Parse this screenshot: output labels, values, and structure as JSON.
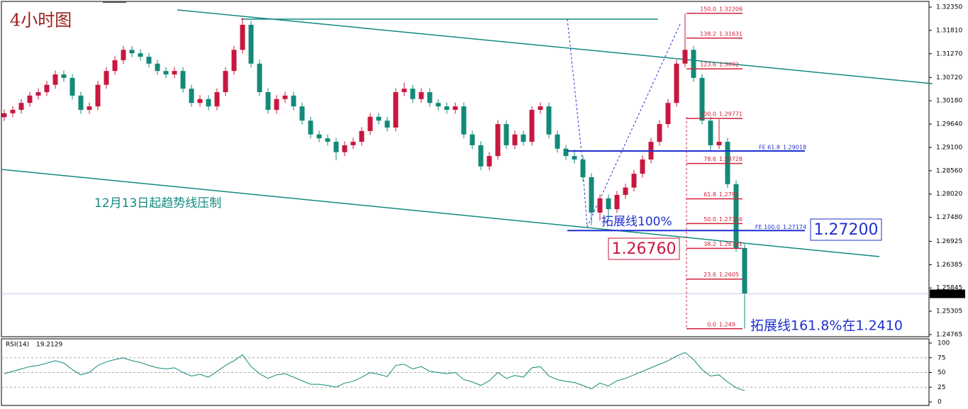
{
  "chart_data": {
    "type": "candlestick",
    "title": "4小时图",
    "annotations": {
      "trend_note": "12月13日起趋势线压制",
      "ext100": "拓展线100%",
      "box_red": "1.26760",
      "box_blue": "1.27200",
      "ext1618": "拓展线161.8%在1.2410"
    },
    "up_color": "#c8173f",
    "down_color": "#138a78",
    "ylim": [
      1.24716,
      1.32514
    ],
    "yticks": [
      {
        "value": 1.3235,
        "label": "1.32350"
      },
      {
        "value": 1.3181,
        "label": "1.31810"
      },
      {
        "value": 1.3127,
        "label": "1.31270"
      },
      {
        "value": 1.3072,
        "label": "1.30720"
      },
      {
        "value": 1.3018,
        "label": "1.30180"
      },
      {
        "value": 1.2964,
        "label": "1.29640"
      },
      {
        "value": 1.291,
        "label": "1.29100"
      },
      {
        "value": 1.2856,
        "label": "1.28560"
      },
      {
        "value": 1.2802,
        "label": "1.28020"
      },
      {
        "value": 1.2748,
        "label": "1.27480"
      },
      1.26925,
      1.26385,
      1.25845,
      1.25305,
      1.24765
    ],
    "current_price": 1.25709,
    "candles": [
      [
        1.298,
        1.2998,
        1.2971,
        1.2989
      ],
      [
        1.2989,
        1.3006,
        1.298,
        1.2997
      ],
      [
        1.2997,
        1.3022,
        1.2988,
        1.3013
      ],
      [
        1.3013,
        1.3039,
        1.3004,
        1.303
      ],
      [
        1.303,
        1.3047,
        1.3021,
        1.3038
      ],
      [
        1.3038,
        1.3064,
        1.3029,
        1.3055
      ],
      [
        1.3055,
        1.3088,
        1.3046,
        1.3079
      ],
      [
        1.3079,
        1.3088,
        1.3062,
        1.3071
      ],
      [
        1.3071,
        1.308,
        1.3021,
        1.303
      ],
      [
        1.303,
        1.3039,
        1.2988,
        1.2997
      ],
      [
        1.2997,
        1.3014,
        1.2988,
        1.3005
      ],
      [
        1.3005,
        1.3064,
        1.2996,
        1.3055
      ],
      [
        1.3055,
        1.3096,
        1.3046,
        1.3087
      ],
      [
        1.3087,
        1.3121,
        1.3078,
        1.3112
      ],
      [
        1.3112,
        1.3145,
        1.3103,
        1.3136
      ],
      [
        1.3136,
        1.3145,
        1.3119,
        1.3128
      ],
      [
        1.3128,
        1.3137,
        1.3111,
        1.312
      ],
      [
        1.312,
        1.3129,
        1.3095,
        1.3104
      ],
      [
        1.3104,
        1.3113,
        1.3078,
        1.3087
      ],
      [
        1.3087,
        1.3096,
        1.307,
        1.3079
      ],
      [
        1.3079,
        1.3096,
        1.307,
        1.3087
      ],
      [
        1.3087,
        1.3096,
        1.3037,
        1.3046
      ],
      [
        1.3046,
        1.3055,
        1.3004,
        1.3013
      ],
      [
        1.3013,
        1.3031,
        1.3004,
        1.3022
      ],
      [
        1.3022,
        1.3031,
        1.2996,
        1.3005
      ],
      [
        1.3005,
        1.3047,
        1.2996,
        1.3038
      ],
      [
        1.3038,
        1.3096,
        1.3029,
        1.3087
      ],
      [
        1.3087,
        1.3145,
        1.3078,
        1.3136
      ],
      [
        1.3136,
        1.321,
        1.3127,
        1.3194
      ],
      [
        1.3194,
        1.3203,
        1.3095,
        1.3104
      ],
      [
        1.3104,
        1.3113,
        1.3029,
        1.3038
      ],
      [
        1.3038,
        1.3047,
        1.2988,
        1.2997
      ],
      [
        1.2997,
        1.3031,
        1.2988,
        1.3022
      ],
      [
        1.3022,
        1.3039,
        1.3013,
        1.303
      ],
      [
        1.303,
        1.3039,
        1.2996,
        1.3005
      ],
      [
        1.3005,
        1.3014,
        1.2963,
        1.2972
      ],
      [
        1.2972,
        1.2981,
        1.2931,
        1.294
      ],
      [
        1.294,
        1.2949,
        1.2922,
        1.2931
      ],
      [
        1.2931,
        1.294,
        1.2914,
        1.2923
      ],
      [
        1.2923,
        1.2932,
        1.288,
        1.2899
      ],
      [
        1.2899,
        1.2924,
        1.289,
        1.2915
      ],
      [
        1.2915,
        1.2932,
        1.2906,
        1.2923
      ],
      [
        1.2923,
        1.2957,
        1.2914,
        1.2948
      ],
      [
        1.2948,
        1.299,
        1.2939,
        1.2981
      ],
      [
        1.2981,
        1.299,
        1.2963,
        1.2972
      ],
      [
        1.2972,
        1.2981,
        1.2947,
        1.2956
      ],
      [
        1.2956,
        1.3047,
        1.2947,
        1.3038
      ],
      [
        1.3038,
        1.306,
        1.3029,
        1.3046
      ],
      [
        1.3046,
        1.3055,
        1.3013,
        1.3022
      ],
      [
        1.3022,
        1.3047,
        1.3013,
        1.3038
      ],
      [
        1.3038,
        1.3047,
        1.3004,
        1.3013
      ],
      [
        1.3013,
        1.3022,
        1.2996,
        1.3005
      ],
      [
        1.3005,
        1.3014,
        1.2988,
        1.2997
      ],
      [
        1.2997,
        1.3014,
        1.2988,
        1.3005
      ],
      [
        1.3005,
        1.3014,
        1.2931,
        1.294
      ],
      [
        1.294,
        1.2949,
        1.2906,
        1.2915
      ],
      [
        1.2915,
        1.2924,
        1.2857,
        1.2866
      ],
      [
        1.2866,
        1.2899,
        1.2857,
        1.289
      ],
      [
        1.289,
        1.2973,
        1.2881,
        1.2964
      ],
      [
        1.2964,
        1.2973,
        1.2906,
        1.2915
      ],
      [
        1.2915,
        1.2949,
        1.2906,
        1.294
      ],
      [
        1.294,
        1.2949,
        1.2914,
        1.2923
      ],
      [
        1.2923,
        1.3006,
        1.2914,
        1.2997
      ],
      [
        1.2997,
        1.3014,
        1.2988,
        1.3005
      ],
      [
        1.3005,
        1.3014,
        1.2931,
        1.294
      ],
      [
        1.294,
        1.2949,
        1.2898,
        1.2907
      ],
      [
        1.2907,
        1.2916,
        1.2881,
        1.289
      ],
      [
        1.289,
        1.2905,
        1.2873,
        1.2882
      ],
      [
        1.2882,
        1.2891,
        1.2832,
        1.2841
      ],
      [
        1.2841,
        1.285,
        1.273,
        1.2759
      ],
      [
        1.2759,
        1.2801,
        1.274,
        1.2792
      ],
      [
        1.2792,
        1.2801,
        1.2745,
        1.2767
      ],
      [
        1.2767,
        1.2809,
        1.2758,
        1.28
      ],
      [
        1.28,
        1.2826,
        1.2791,
        1.2817
      ],
      [
        1.2817,
        1.2858,
        1.2808,
        1.2849
      ],
      [
        1.2849,
        1.2891,
        1.284,
        1.2882
      ],
      [
        1.2882,
        1.2932,
        1.2873,
        1.2923
      ],
      [
        1.2923,
        1.2973,
        1.2914,
        1.2964
      ],
      [
        1.2964,
        1.3022,
        1.2955,
        1.3013
      ],
      [
        1.3013,
        1.3113,
        1.3004,
        1.3104
      ],
      [
        1.3104,
        1.322,
        1.3095,
        1.3136
      ],
      [
        1.3136,
        1.3145,
        1.3062,
        1.3071
      ],
      [
        1.3071,
        1.308,
        1.2963,
        1.2972
      ],
      [
        1.2972,
        1.2981,
        1.29,
        1.2915
      ],
      [
        1.2915,
        1.2975,
        1.2906,
        1.2923
      ],
      [
        1.2923,
        1.2932,
        1.2816,
        1.2825
      ],
      [
        1.2825,
        1.2834,
        1.2668,
        1.2677
      ],
      [
        1.2677,
        1.2686,
        1.249,
        1.2571
      ]
    ],
    "fib": {
      "color": "#d0203a",
      "levels": [
        {
          "ratio": "150.0",
          "price": 1.32206
        },
        {
          "ratio": "138.2",
          "price": 1.31631
        },
        {
          "ratio": "123.6",
          "price": 1.3092
        },
        {
          "ratio": "100.0",
          "price": 1.29771
        },
        {
          "ratio": "78.6",
          "price": 1.28728
        },
        {
          "ratio": "61.8",
          "price": 1.2791
        },
        {
          "ratio": "50.0",
          "price": 1.27336
        },
        {
          "ratio": "38.2",
          "price": 1.26761
        },
        {
          "ratio": "23.6",
          "price": 1.2605
        },
        {
          "ratio": "0.0",
          "price": 1.249
        }
      ]
    },
    "fe": {
      "color": "#1f2fd0",
      "levels": [
        {
          "label": "FE 61.8",
          "price": 1.29018
        },
        {
          "label": "FE 100.0",
          "price": 1.27174
        }
      ]
    },
    "rsi": {
      "label": "RSI(14)",
      "color": "#138a78",
      "ylim": [
        0,
        100
      ],
      "yticks": [
        100,
        75,
        50,
        25,
        0
      ],
      "values": [
        48,
        52,
        56,
        60,
        62,
        66,
        70,
        66,
        55,
        46,
        50,
        62,
        68,
        72,
        75,
        70,
        67,
        62,
        58,
        56,
        58,
        50,
        44,
        47,
        42,
        52,
        62,
        70,
        80,
        60,
        48,
        40,
        46,
        48,
        42,
        36,
        30,
        30,
        28,
        25,
        32,
        35,
        42,
        50,
        47,
        43,
        62,
        64,
        56,
        60,
        52,
        50,
        48,
        50,
        38,
        34,
        28,
        36,
        50,
        40,
        45,
        42,
        58,
        60,
        44,
        38,
        35,
        33,
        28,
        22,
        32,
        27,
        36,
        40,
        46,
        52,
        58,
        64,
        70,
        78,
        84,
        72,
        55,
        44,
        46,
        34,
        24,
        19.2129
      ]
    }
  }
}
